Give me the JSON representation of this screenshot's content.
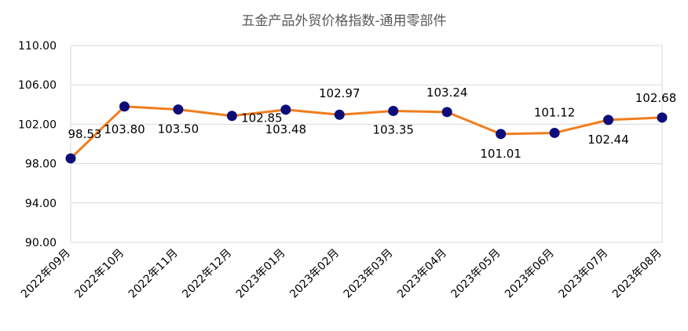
{
  "chart_data": {
    "type": "line",
    "title": "五金产品外贸价格指数-通用零部件",
    "categories": [
      "2022年09月",
      "2022年10月",
      "2022年11月",
      "2022年12月",
      "2023年01月",
      "2023年02月",
      "2023年03月",
      "2023年04月",
      "2023年05月",
      "2023年06月",
      "2023年07月",
      "2023年08月"
    ],
    "series": [
      {
        "values": [
          98.53,
          103.8,
          103.5,
          102.85,
          103.48,
          102.97,
          103.35,
          103.24,
          101.01,
          101.12,
          102.44,
          102.68
        ]
      }
    ],
    "data_labels": [
      "98.53",
      "103.80",
      "103.50",
      "102.85",
      "103.48",
      "102.97",
      "103.35",
      "103.24",
      "101.01",
      "101.12",
      "102.44",
      "102.68"
    ],
    "ylim": [
      90,
      110
    ],
    "yticks": [
      "90.00",
      "94.00",
      "98.00",
      "102.00",
      "106.00",
      "110.00"
    ],
    "grid": true,
    "legend": "none",
    "xlabel": "",
    "ylabel": "",
    "colors": {
      "line": "#f07d1d",
      "marker": "#0d0d7a",
      "grid": "#d9d9d9",
      "text": "#000000",
      "title": "#595959"
    }
  }
}
